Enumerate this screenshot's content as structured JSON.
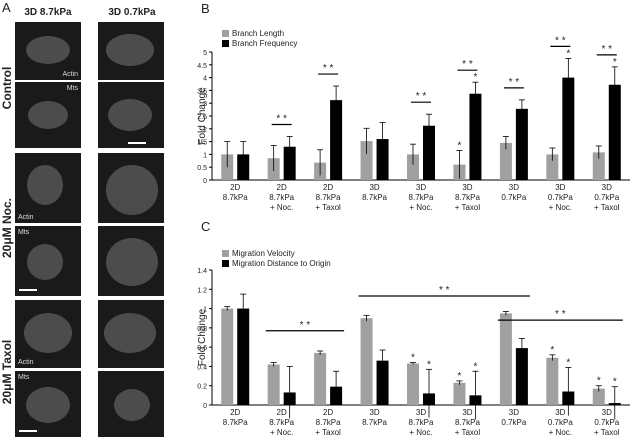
{
  "panel_a": {
    "label": "A",
    "columns": [
      "3D 8.7kPa",
      "3D 0.7kPa"
    ],
    "rows": [
      "Control",
      "20μM Noc.",
      "20μM Taxol"
    ],
    "image_labels": [
      "Actin",
      "Mts",
      "Actin",
      "Mts",
      "Actin",
      "Mts"
    ]
  },
  "chart_data": [
    {
      "type": "bar",
      "panel_label": "B",
      "y_label": "Fold Change",
      "categories": [
        [
          "2D",
          "8.7kPa"
        ],
        [
          "2D",
          "8.7kPa",
          "+ Noc."
        ],
        [
          "2D",
          "8.7kPa",
          "+ Taxol"
        ],
        [
          "3D",
          "8.7kPa"
        ],
        [
          "3D",
          "8.7kPa",
          "+ Noc."
        ],
        [
          "3D",
          "8.7kPa",
          "+ Taxol"
        ],
        [
          "3D",
          "0.7kPa"
        ],
        [
          "3D",
          "0.7kPa",
          "+ Noc."
        ],
        [
          "3D",
          "0.7kPa",
          "+ Taxol"
        ]
      ],
      "series": [
        {
          "name": "Branch Length",
          "color": "#a0a0a0",
          "values": [
            1.0,
            0.85,
            0.68,
            1.52,
            1.0,
            0.6,
            1.45,
            1.0,
            1.08
          ],
          "errors": [
            0.5,
            0.5,
            0.5,
            0.5,
            0.4,
            0.55,
            0.25,
            0.25,
            0.25
          ]
        },
        {
          "name": "Branch Frequency",
          "color": "#000000",
          "values": [
            1.0,
            1.3,
            3.12,
            1.6,
            2.12,
            3.37,
            2.78,
            4.0,
            3.72
          ],
          "errors": [
            0.5,
            0.4,
            0.55,
            0.65,
            0.45,
            0.45,
            0.35,
            0.75,
            0.7
          ]
        }
      ],
      "ylim": [
        0,
        5
      ],
      "yticks": [
        0,
        0.5,
        1,
        1.5,
        2,
        2.5,
        3,
        3.5,
        4,
        4.5,
        5
      ],
      "brackets": [
        {
          "from": 1,
          "to": 1,
          "label": "* *"
        },
        {
          "from": 2,
          "to": 2,
          "label": "* *"
        },
        {
          "from": 4,
          "to": 4,
          "label": "* *"
        },
        {
          "from": 5,
          "to": 5,
          "label": "* *"
        },
        {
          "from": 6,
          "to": 6,
          "label": "* *"
        },
        {
          "from": 7,
          "to": 7,
          "label": "* *"
        },
        {
          "from": 8,
          "to": 8,
          "label": "* *"
        }
      ],
      "stars": [
        {
          "category": 5,
          "series": 0,
          "label": "*"
        },
        {
          "category": 5,
          "series": 1,
          "label": "*"
        },
        {
          "category": 7,
          "series": 1,
          "label": "*"
        },
        {
          "category": 8,
          "series": 1,
          "label": "*"
        }
      ]
    },
    {
      "type": "bar",
      "panel_label": "C",
      "y_label": "Fold Change",
      "categories": [
        [
          "2D",
          "8.7kPa"
        ],
        [
          "2D",
          "8.7kPa",
          "+ Noc."
        ],
        [
          "2D",
          "8.7kPa",
          "+ Taxol"
        ],
        [
          "3D",
          "8.7kPa"
        ],
        [
          "3D",
          "8.7kPa",
          "+ Noc."
        ],
        [
          "3D",
          "8.7kPa",
          "+ Taxol"
        ],
        [
          "3D",
          "0.7kPa"
        ],
        [
          "3D",
          "0.7kPa",
          "+ Noc."
        ],
        [
          "3D",
          "0.7kPa",
          "+ Taxol"
        ]
      ],
      "series": [
        {
          "name": "Migration Velocity",
          "color": "#a0a0a0",
          "values": [
            1.0,
            0.42,
            0.54,
            0.9,
            0.43,
            0.23,
            0.95,
            0.49,
            0.17
          ],
          "errors": [
            0.02,
            0.02,
            0.02,
            0.03,
            0.01,
            0.02,
            0.02,
            0.03,
            0.03
          ]
        },
        {
          "name": "Migration Distance to Origin",
          "color": "#000000",
          "values": [
            1.0,
            0.13,
            0.19,
            0.46,
            0.12,
            0.1,
            0.59,
            0.14,
            0.02
          ],
          "errors": [
            0.15,
            0.27,
            0.16,
            0.11,
            0.25,
            0.25,
            0.1,
            0.25,
            0.17
          ]
        }
      ],
      "ylim": [
        0,
        1.4
      ],
      "yticks": [
        0,
        0.2,
        0.4,
        0.6,
        0.8,
        1,
        1.2,
        1.4
      ],
      "brackets": [
        {
          "from": 1,
          "to": 2,
          "label": "* *",
          "y": 0.77
        },
        {
          "from": 3,
          "to": 6,
          "label": "* *",
          "y": 1.13
        },
        {
          "from": 6,
          "to": 8,
          "label": "* *",
          "y": 0.88
        }
      ],
      "stars": [
        {
          "category": 4,
          "series": 0,
          "label": "*"
        },
        {
          "category": 4,
          "series": 1,
          "label": "*"
        },
        {
          "category": 5,
          "series": 0,
          "label": "*"
        },
        {
          "category": 5,
          "series": 1,
          "label": "*"
        },
        {
          "category": 7,
          "series": 0,
          "label": "*"
        },
        {
          "category": 7,
          "series": 1,
          "label": "*"
        },
        {
          "category": 8,
          "series": 0,
          "label": "*"
        },
        {
          "category": 8,
          "series": 1,
          "label": "*"
        }
      ]
    }
  ]
}
